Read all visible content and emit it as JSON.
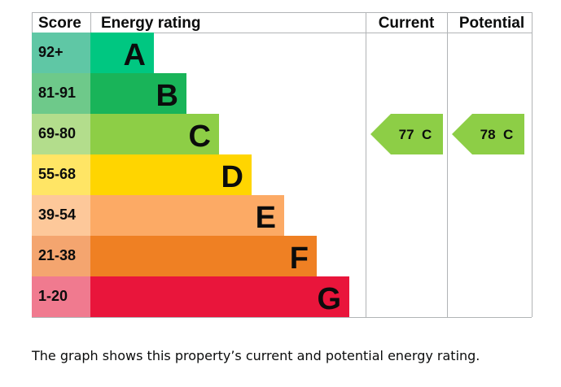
{
  "chart_data": {
    "type": "table",
    "headers": {
      "score": "Score",
      "rating": "Energy rating",
      "current": "Current",
      "potential": "Potential"
    },
    "bands": [
      {
        "letter": "A",
        "range": "92+",
        "min": 92,
        "max": 100,
        "color": "#00c781",
        "score_color": "#5fc7a5"
      },
      {
        "letter": "B",
        "range": "81-91",
        "min": 81,
        "max": 91,
        "color": "#19b459",
        "score_color": "#6ec98a"
      },
      {
        "letter": "C",
        "range": "69-80",
        "min": 69,
        "max": 80,
        "color": "#8dce46",
        "score_color": "#b3dd8c"
      },
      {
        "letter": "D",
        "range": "55-68",
        "min": 55,
        "max": 68,
        "color": "#ffd500",
        "score_color": "#ffe565"
      },
      {
        "letter": "E",
        "range": "39-54",
        "min": 39,
        "max": 54,
        "color": "#fcaa65",
        "score_color": "#fdc89a"
      },
      {
        "letter": "F",
        "range": "21-38",
        "min": 21,
        "max": 38,
        "color": "#ef8023",
        "score_color": "#f4a56f"
      },
      {
        "letter": "G",
        "range": "1-20",
        "min": 1,
        "max": 20,
        "color": "#e9153b",
        "score_color": "#f07a8f"
      }
    ],
    "current": {
      "value": 77,
      "letter": "C",
      "label": "77  C",
      "color": "#8dce46"
    },
    "potential": {
      "value": 78,
      "letter": "C",
      "label": "78  C",
      "color": "#8dce46"
    }
  },
  "caption": "The graph shows this property’s current and potential energy rating."
}
